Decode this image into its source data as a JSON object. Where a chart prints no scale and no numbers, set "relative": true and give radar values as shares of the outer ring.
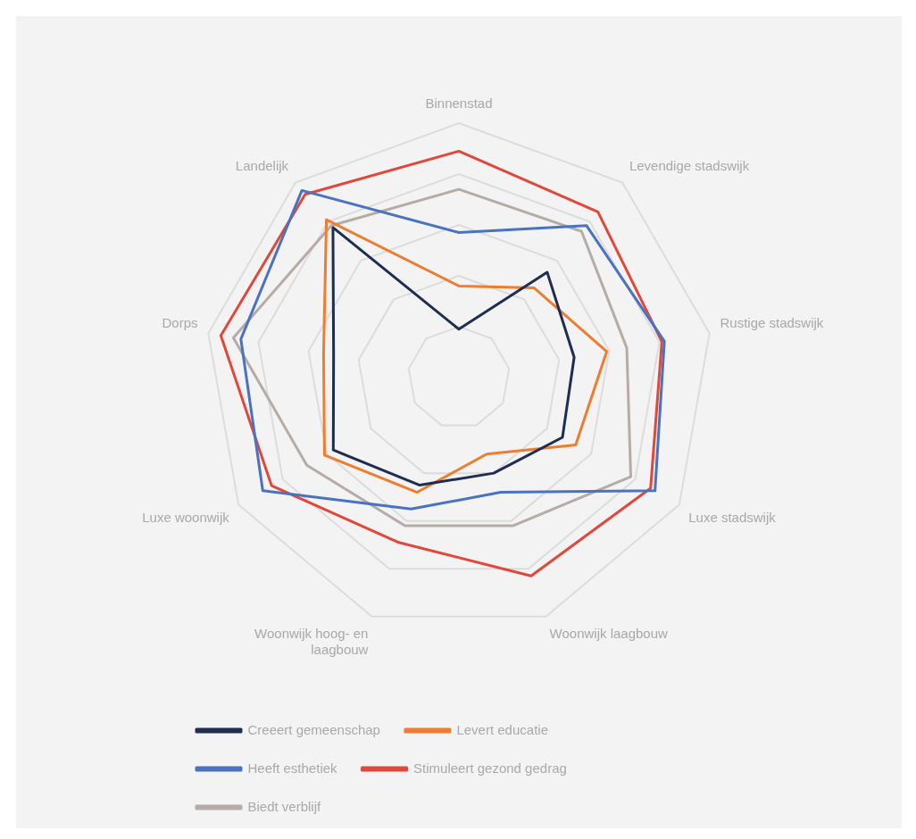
{
  "chart_data": {
    "type": "radar",
    "relative": true,
    "grid": true,
    "legend": "bottom",
    "categories": [
      "Binnenstad",
      "Levendige stadswijk",
      "Rustige stadswijk",
      "Luxe stadswijk",
      "Woonwijk laagbouw",
      "Woonwijk hoog- en laagbouw",
      "Luxe woonwijk",
      "Dorps",
      "Landelijk"
    ],
    "series": [
      {
        "name": "Creeert gemeenschap",
        "color": "#1f2d50",
        "values": [
          0.19,
          0.54,
          0.46,
          0.47,
          0.4,
          0.45,
          0.57,
          0.5,
          0.77
        ]
      },
      {
        "name": "Levert educatie",
        "color": "#ed7d31",
        "values": [
          0.36,
          0.46,
          0.59,
          0.53,
          0.32,
          0.48,
          0.61,
          0.54,
          0.81
        ]
      },
      {
        "name": "Heeft esthetiek",
        "color": "#4a72c0",
        "values": [
          0.57,
          0.78,
          0.82,
          0.89,
          0.48,
          0.55,
          0.89,
          0.87,
          0.96
        ]
      },
      {
        "name": "Stimuleert gezond gedrag",
        "color": "#e0483c",
        "values": [
          0.89,
          0.85,
          0.81,
          0.87,
          0.83,
          0.69,
          0.85,
          0.95,
          0.94
        ]
      },
      {
        "name": "Biedt verblijf",
        "color": "#b5aca8",
        "values": [
          0.74,
          0.75,
          0.67,
          0.78,
          0.62,
          0.62,
          0.69,
          0.9,
          0.78
        ]
      }
    ]
  }
}
